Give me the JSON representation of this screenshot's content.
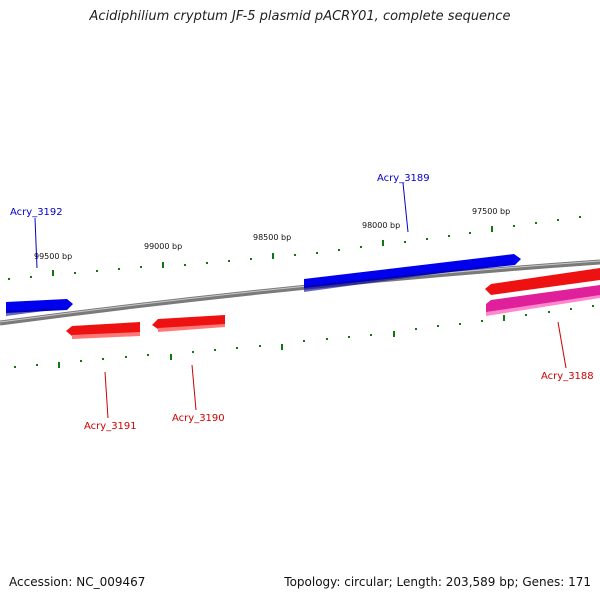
{
  "title": "Acidiphilium cryptum JF-5 plasmid pACRY01, complete sequence",
  "footer": {
    "accession": "Accession: NC_009467",
    "summary": "Topology: circular; Length: 203,589 bp; Genes: 171"
  },
  "colors": {
    "forward_gene": "#0000ee",
    "reverse_gene": "#ee1111",
    "rrna_gene": "#e0209a",
    "backbone": "#7a7a7a",
    "ticks": "#117711",
    "label_forward": "#0000cc",
    "label_reverse": "#cc0000"
  },
  "scale_labels": [
    "99500 bp",
    "99000 bp",
    "98500 bp",
    "98000 bp",
    "97500 bp"
  ],
  "genes": [
    {
      "name": "Acry_3192",
      "strand": "forward"
    },
    {
      "name": "Acry_3189",
      "strand": "forward"
    },
    {
      "name": "Acry_3191",
      "strand": "reverse"
    },
    {
      "name": "Acry_3190",
      "strand": "reverse"
    },
    {
      "name": "Acry_3188",
      "strand": "reverse"
    }
  ]
}
